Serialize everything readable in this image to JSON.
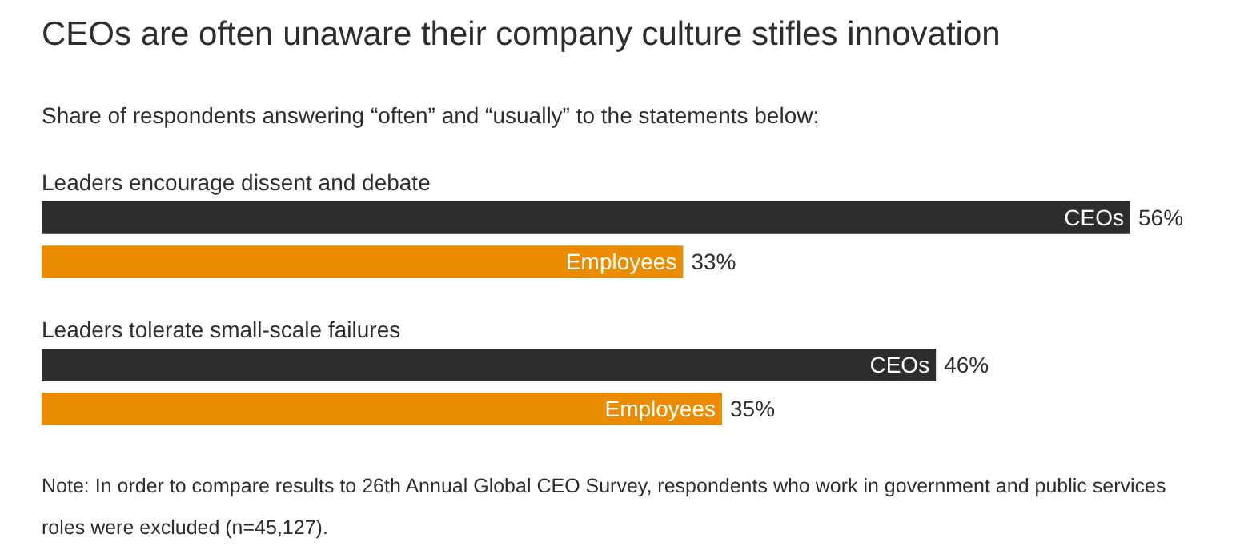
{
  "chart_data": {
    "type": "bar",
    "orientation": "horizontal",
    "title": "CEOs are often unaware their company culture stifles innovation",
    "subtitle": "Share of respondents answering “often” and “usually” to the statements below:",
    "categories": [
      "Leaders encourage dissent and debate",
      "Leaders tolerate small-scale failures"
    ],
    "series": [
      {
        "name": "CEOs",
        "color": "#2d2d2d",
        "values": [
          56,
          46
        ],
        "value_labels": [
          "56%",
          "46%"
        ]
      },
      {
        "name": "Employees",
        "color": "#eb8c00",
        "values": [
          33,
          35
        ],
        "value_labels": [
          "33%",
          "35%"
        ]
      }
    ],
    "legend": false,
    "tick_labels": false,
    "annotations": [
      "Note: In order to compare results to 26th Annual Global CEO Survey, respondents who work in government and public services roles were excluded (n=45,127)."
    ]
  }
}
